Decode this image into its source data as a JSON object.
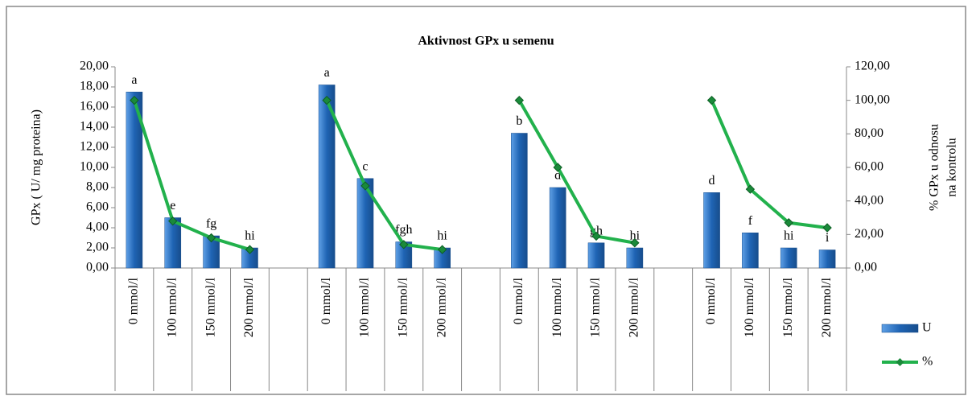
{
  "chart_data": {
    "type": "bar_line",
    "title": "Aktivnost GPx u semenu",
    "y_label": "GPx ( U/ mg  proteina)",
    "y2_label": [
      "% GPx u odnosu",
      "na kontrolu"
    ],
    "categories": [
      "0 mmol/l",
      "100 mmol/l",
      "150 mmol/l",
      "200 mmol/l",
      null,
      "0 mmol/l",
      "100 mmol/l",
      "150 mmol/l",
      "200 mmol/l",
      null,
      "0 mmol/l",
      "100 mmol/l",
      "150 mmol/l",
      "200 mmol/l",
      null,
      "0 mmol/l",
      "100 mmol/l",
      "150 mmol/l",
      "200 mmol/l"
    ],
    "series": [
      {
        "name": "U",
        "color": "#1f64b4",
        "kind": "bar",
        "values": [
          17.5,
          5.0,
          3.2,
          2.0,
          null,
          18.2,
          8.9,
          2.6,
          2.0,
          null,
          13.4,
          8.0,
          2.5,
          2.0,
          null,
          7.5,
          3.5,
          2.0,
          1.8
        ],
        "letters": [
          "a",
          "e",
          "fg",
          "hi",
          null,
          "a",
          "c",
          "fgh",
          "hi",
          null,
          "b",
          "d",
          "gh",
          "hi",
          null,
          "d",
          "f",
          "hi",
          "i"
        ]
      },
      {
        "name": "%",
        "color": "#22b14c",
        "kind": "line",
        "axis": "y2",
        "values": [
          100,
          28,
          18,
          11,
          null,
          100,
          49,
          14,
          11,
          null,
          100,
          60,
          19,
          15,
          null,
          100,
          47,
          27,
          24
        ]
      }
    ],
    "ylim": [
      0,
      20
    ],
    "yticks": [
      {
        "value": 0,
        "label": "0,00"
      },
      {
        "value": 2,
        "label": "2,00"
      },
      {
        "value": 4,
        "label": "4,00"
      },
      {
        "value": 6,
        "label": "6,00"
      },
      {
        "value": 8,
        "label": "8,00"
      },
      {
        "value": 10,
        "label": "10,00"
      },
      {
        "value": 12,
        "label": "12,00"
      },
      {
        "value": 14,
        "label": "14,00"
      },
      {
        "value": 16,
        "label": "16,00"
      },
      {
        "value": 18,
        "label": "18,00"
      },
      {
        "value": 20,
        "label": "20,00"
      }
    ],
    "y2lim": [
      0,
      120
    ],
    "y2ticks": [
      {
        "value": 0,
        "label": "0,00"
      },
      {
        "value": 20,
        "label": "20,00"
      },
      {
        "value": 40,
        "label": "40,00"
      },
      {
        "value": 60,
        "label": "60,00"
      },
      {
        "value": 80,
        "label": "80,00"
      },
      {
        "value": 100,
        "label": "100,00"
      },
      {
        "value": 120,
        "label": "120,00"
      }
    ]
  }
}
